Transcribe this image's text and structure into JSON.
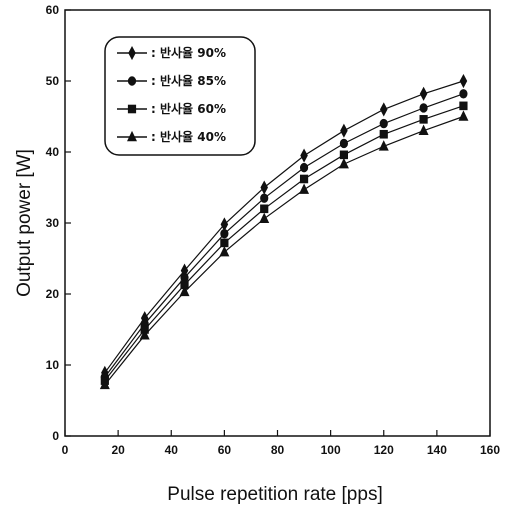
{
  "chart_data": {
    "type": "line",
    "xlabel": "Pulse repetition rate [pps]",
    "ylabel": "Output power [W]",
    "xlim": [
      0,
      160
    ],
    "ylim": [
      0,
      60
    ],
    "xticks": [
      0,
      20,
      40,
      60,
      80,
      100,
      120,
      140,
      160
    ],
    "yticks": [
      0,
      10,
      20,
      30,
      40,
      50,
      60
    ],
    "grid": false,
    "legend_position": "top-left",
    "x": [
      15,
      30,
      45,
      60,
      75,
      90,
      105,
      120,
      135,
      150
    ],
    "series": [
      {
        "name": ": 반사율 90%",
        "marker": "diamond",
        "values": [
          8.9,
          16.6,
          23.3,
          29.8,
          35.0,
          39.5,
          43.0,
          46.0,
          48.2,
          50.0
        ]
      },
      {
        "name": ": 반사율 85%",
        "marker": "circle",
        "values": [
          8.3,
          15.8,
          22.3,
          28.5,
          33.5,
          37.8,
          41.2,
          44.0,
          46.2,
          48.2
        ]
      },
      {
        "name": ": 반사율 60%",
        "marker": "square",
        "values": [
          7.8,
          15.0,
          21.3,
          27.2,
          32.0,
          36.2,
          39.6,
          42.5,
          44.6,
          46.5
        ]
      },
      {
        "name": ": 반사율 40%",
        "marker": "triangle",
        "values": [
          7.2,
          14.2,
          20.3,
          25.9,
          30.6,
          34.7,
          38.3,
          40.8,
          43.0,
          45.0
        ]
      }
    ]
  }
}
